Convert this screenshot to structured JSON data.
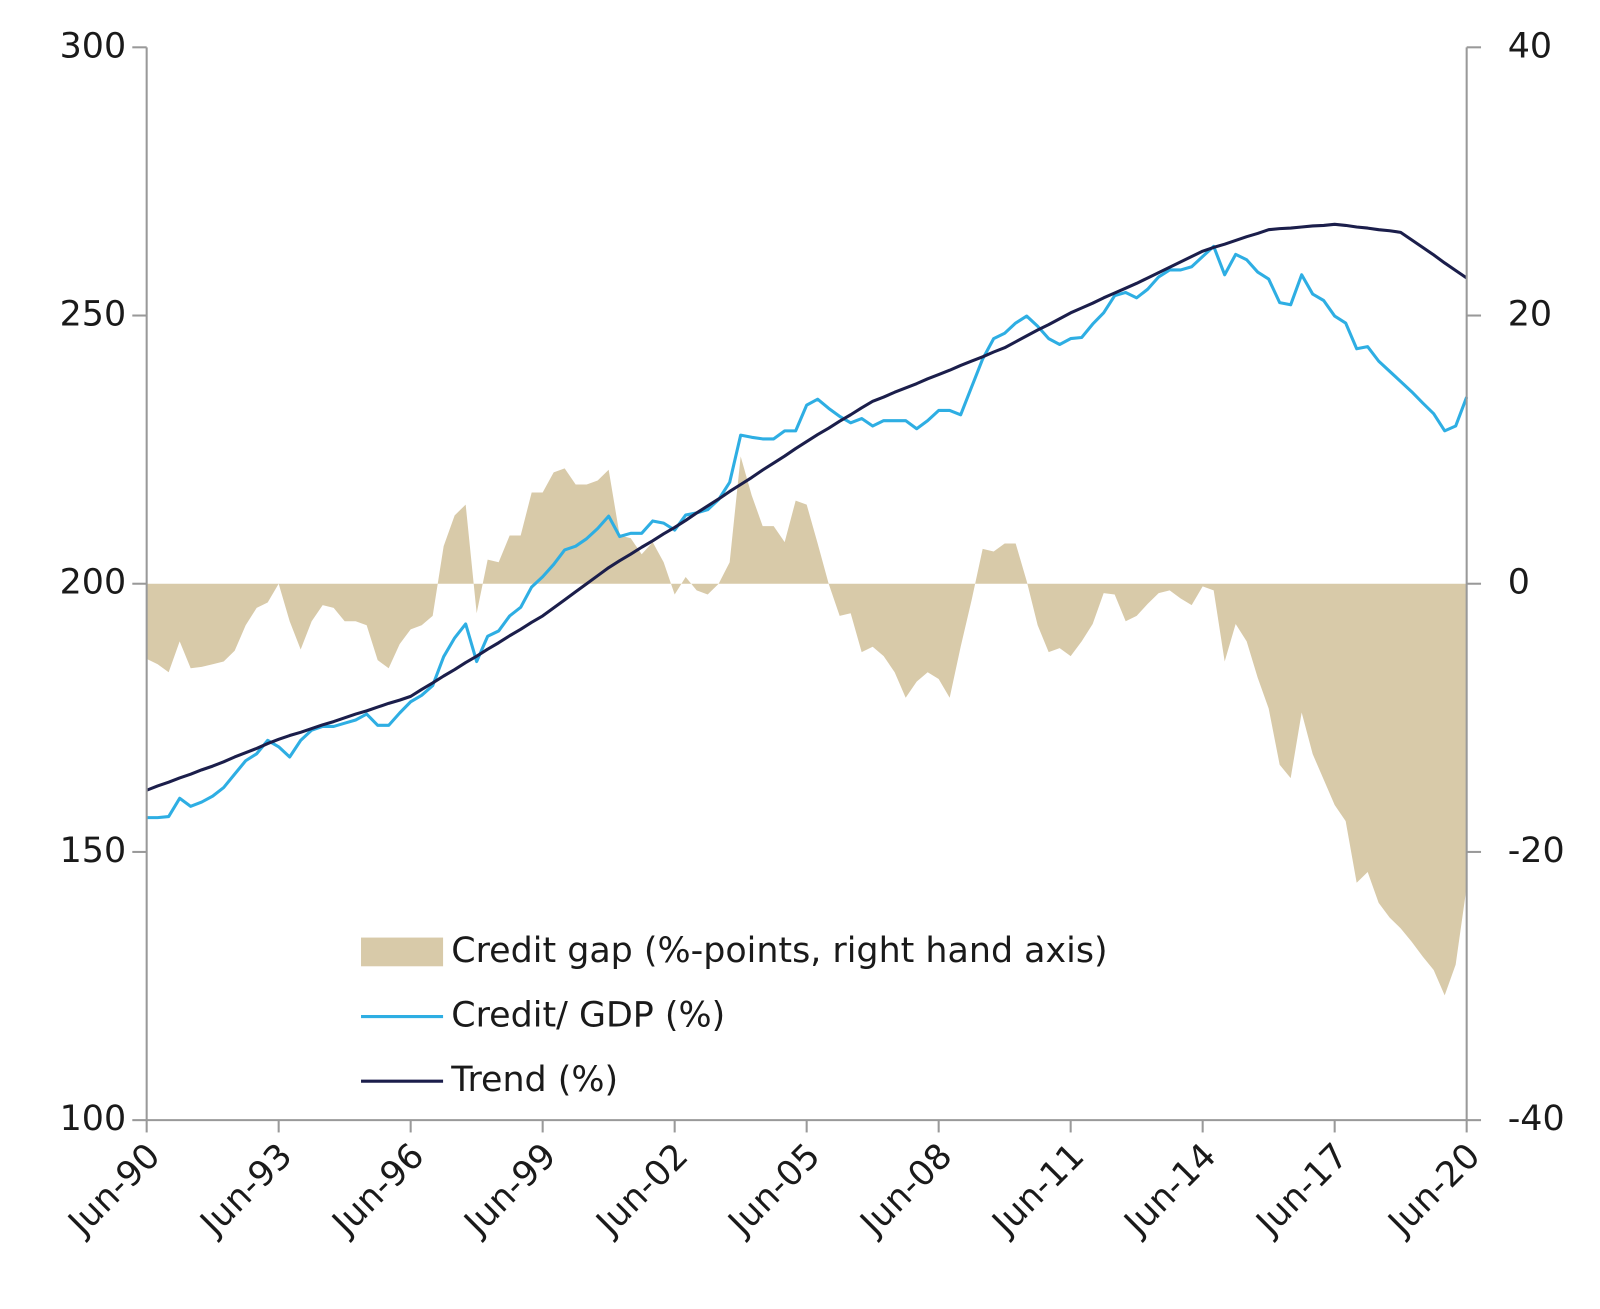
{
  "chart_data": {
    "type": "line",
    "categories": [
      "Jun-90",
      null,
      null,
      null,
      null,
      null,
      null,
      null,
      null,
      null,
      null,
      null,
      "Jun-93",
      null,
      null,
      null,
      null,
      null,
      null,
      null,
      null,
      null,
      null,
      null,
      "Jun-96",
      null,
      null,
      null,
      null,
      null,
      null,
      null,
      null,
      null,
      null,
      null,
      "Jun-99",
      null,
      null,
      null,
      null,
      null,
      null,
      null,
      null,
      null,
      null,
      null,
      "Jun-02",
      null,
      null,
      null,
      null,
      null,
      null,
      null,
      null,
      null,
      null,
      null,
      "Jun-05",
      null,
      null,
      null,
      null,
      null,
      null,
      null,
      null,
      null,
      null,
      null,
      "Jun-08",
      null,
      null,
      null,
      null,
      null,
      null,
      null,
      null,
      null,
      null,
      null,
      "Jun-11",
      null,
      null,
      null,
      null,
      null,
      null,
      null,
      null,
      null,
      null,
      null,
      "Jun-14",
      null,
      null,
      null,
      null,
      null,
      null,
      null,
      null,
      null,
      null,
      null,
      "Jun-17",
      null,
      null,
      null,
      null,
      null,
      null,
      null,
      null,
      null,
      null,
      null,
      "Jun-20"
    ],
    "series": [
      {
        "name": "Credit gap (%-points, right hand axis)",
        "type": "area",
        "axis": "y2",
        "color": "#d8caa9",
        "values": [
          -5.6,
          -6,
          -6.6,
          -4.3,
          -6.3,
          -6.2,
          -6,
          -5.8,
          -5,
          -3.1,
          -1.8,
          -1.4,
          0,
          -2.8,
          -4.9,
          -2.8,
          -1.6,
          -1.8,
          -2.8,
          -2.8,
          -3.1,
          -5.7,
          -6.3,
          -4.5,
          -3.4,
          -3.1,
          -2.4,
          2.8,
          5.1,
          5.9,
          -2.2,
          1.8,
          1.6,
          3.6,
          3.6,
          6.8,
          6.8,
          8.3,
          8.6,
          7.4,
          7.4,
          7.7,
          8.5,
          3.6,
          3.4,
          2.2,
          3.1,
          1.6,
          -0.8,
          0.5,
          -0.5,
          -0.8,
          0,
          1.6,
          9.5,
          6.6,
          4.3,
          4.3,
          3.1,
          6.2,
          5.9,
          3,
          0,
          -2.4,
          -2.2,
          -5.1,
          -4.7,
          -5.4,
          -6.6,
          -8.5,
          -7.3,
          -6.6,
          -7.1,
          -8.5,
          -4.7,
          -1.2,
          2.6,
          2.4,
          3,
          3,
          0.2,
          -3.1,
          -5.1,
          -4.8,
          -5.4,
          -4.3,
          -3,
          -0.7,
          -0.8,
          -2.8,
          -2.4,
          -1.5,
          -0.7,
          -0.5,
          -1.1,
          -1.6,
          -0.2,
          -0.5,
          -5.8,
          -3,
          -4.3,
          -7,
          -9.3,
          -13.5,
          -14.5,
          -9.6,
          -12.7,
          -14.6,
          -16.5,
          -17.7,
          -22.3,
          -21.5,
          -23.8,
          -24.9,
          -25.7,
          -26.7,
          -27.8,
          -28.8,
          -30.7,
          -28.4,
          -22.6
        ]
      },
      {
        "name": "Credit/ GDP (%)",
        "type": "line",
        "color": "#2eaee3",
        "values": [
          156.4,
          156.4,
          156.6,
          160,
          158.5,
          159.3,
          160.4,
          162,
          164.5,
          167,
          168.3,
          170.8,
          169.6,
          167.7,
          170.8,
          172.7,
          173.4,
          173.4,
          174,
          174.6,
          175.7,
          173.6,
          173.6,
          175.9,
          178,
          179.2,
          181,
          186.4,
          189.9,
          192.5,
          185.5,
          190.2,
          191.2,
          194,
          195.6,
          199.4,
          201.3,
          203.6,
          206.3,
          207,
          208.4,
          210.3,
          212.6,
          208.8,
          209.4,
          209.4,
          211.7,
          211.3,
          210,
          212.8,
          213.2,
          213.8,
          215.7,
          218.9,
          227.7,
          227.3,
          227,
          227,
          228.5,
          228.5,
          233.3,
          234.4,
          232.7,
          231.2,
          230,
          230.8,
          229.4,
          230.4,
          230.4,
          230.4,
          228.9,
          230.4,
          232.3,
          232.3,
          231.5,
          236.7,
          241.9,
          245.7,
          246.7,
          248.6,
          249.9,
          248,
          245.7,
          244.6,
          245.7,
          245.9,
          248.4,
          250.5,
          253.7,
          254.3,
          253.3,
          254.9,
          257.2,
          258.5,
          258.5,
          259.1,
          261,
          262.9,
          257.6,
          261.4,
          260.4,
          258.1,
          256.8,
          252.4,
          252,
          257.6,
          254,
          252.8,
          249.9,
          248.6,
          243.8,
          244.2,
          241.5,
          239.6,
          237.7,
          235.8,
          233.7,
          231.7,
          228.5,
          229.4,
          234.8
        ]
      },
      {
        "name": "Trend (%)",
        "type": "line",
        "color": "#1b1e4b",
        "values": [
          161.5,
          162.3,
          163,
          163.8,
          164.5,
          165.3,
          166,
          166.8,
          167.7,
          168.5,
          169.3,
          170.2,
          171,
          171.7,
          172.3,
          173,
          173.7,
          174.3,
          175,
          175.7,
          176.3,
          177,
          177.7,
          178.3,
          179,
          180.3,
          181.5,
          182.8,
          184,
          185.3,
          186.5,
          187.8,
          189,
          190.3,
          191.5,
          192.8,
          194,
          195.5,
          197,
          198.5,
          200,
          201.5,
          203,
          204.3,
          205.5,
          206.8,
          208,
          209.3,
          210.5,
          211.8,
          213.2,
          214.5,
          215.8,
          217.2,
          218.5,
          219.8,
          221.2,
          222.5,
          223.8,
          225.2,
          226.5,
          227.8,
          229,
          230.3,
          231.5,
          232.8,
          234,
          234.8,
          235.7,
          236.5,
          237.3,
          238.2,
          239,
          239.8,
          240.7,
          241.5,
          242.3,
          243.2,
          244,
          245.1,
          246.2,
          247.3,
          248.3,
          249.4,
          250.5,
          251.4,
          252.3,
          253.3,
          254.2,
          255.1,
          256,
          257,
          258,
          259,
          260,
          261,
          262,
          262.7,
          263.3,
          264,
          264.7,
          265.3,
          266,
          266.2,
          266.3,
          266.5,
          266.7,
          266.8,
          267,
          266.8,
          266.5,
          266.3,
          266,
          265.8,
          265.5,
          264.1,
          262.7,
          261.3,
          259.8,
          258.4,
          257
        ]
      }
    ],
    "ylim": [
      100,
      300
    ],
    "yticks": [
      100,
      150,
      200,
      250,
      300
    ],
    "y2lim": [
      -40,
      40
    ],
    "y2ticks": [
      -40,
      -20,
      0,
      20,
      40
    ],
    "grid": false,
    "legend": "bottom"
  }
}
